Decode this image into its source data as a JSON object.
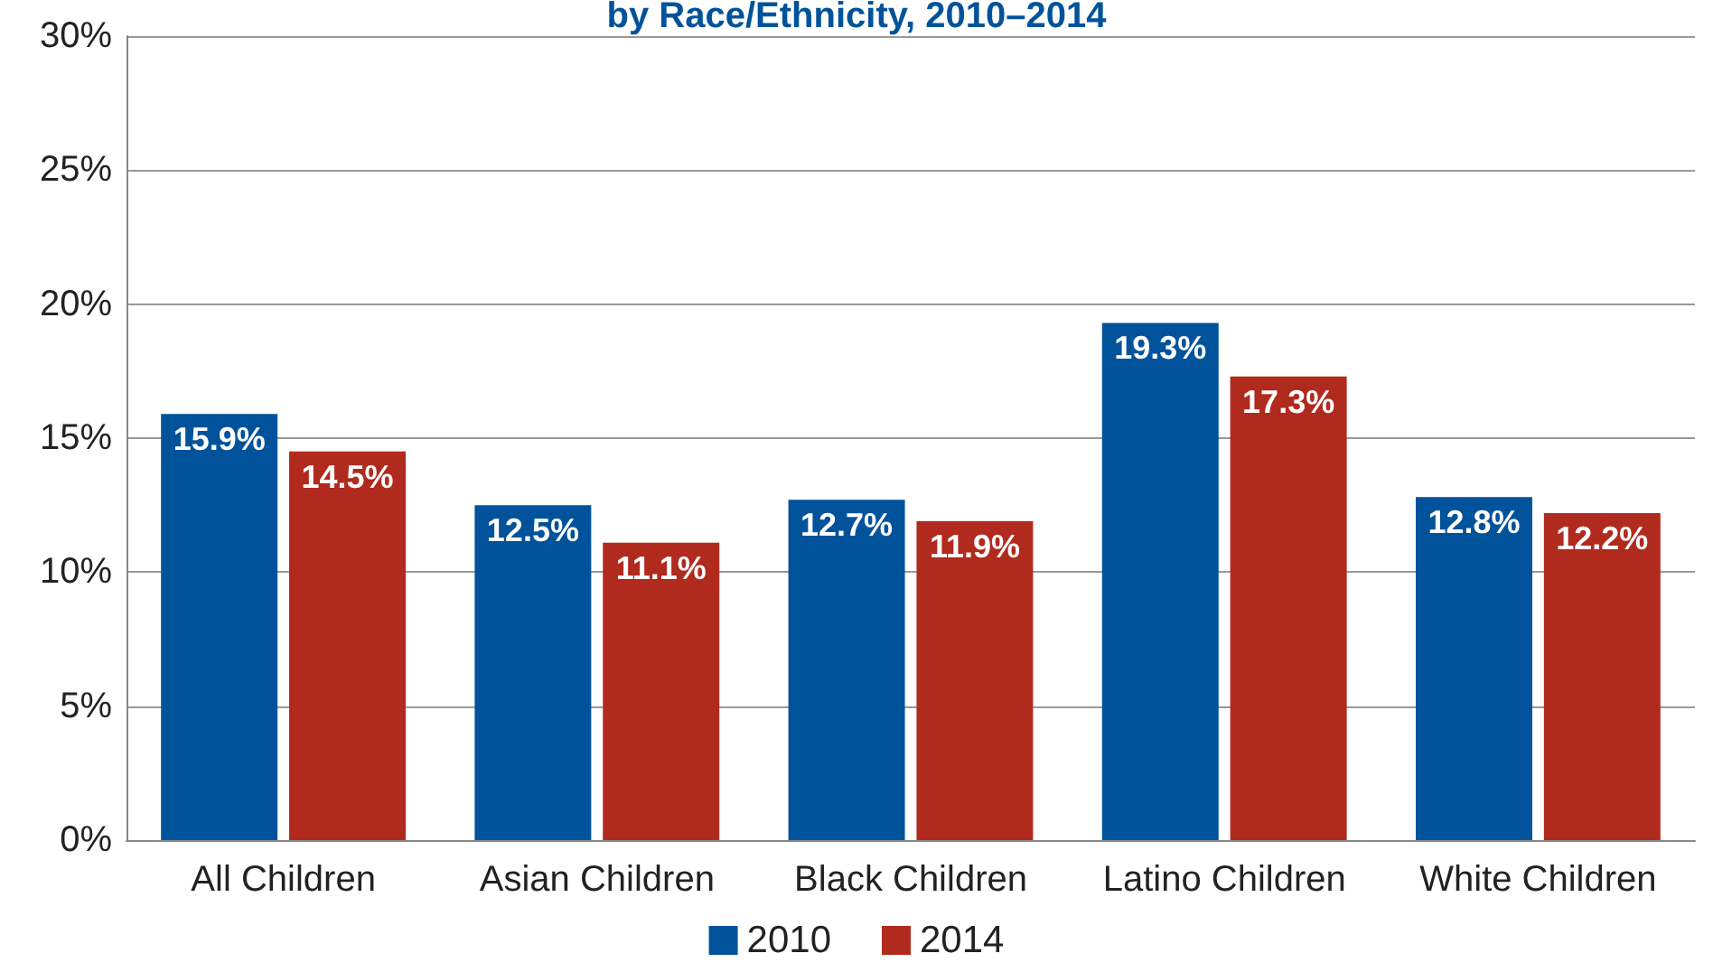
{
  "chart_data": {
    "type": "bar",
    "title": "by Race/Ethnicity, 2010–2014",
    "categories": [
      "All Children",
      "Asian Children",
      "Black Children",
      "Latino Children",
      "White Children"
    ],
    "series": [
      {
        "name": "2010",
        "color": "#00539b",
        "values": [
          15.9,
          12.5,
          12.7,
          19.3,
          12.8
        ],
        "value_labels": [
          "15.9%",
          "12.5%",
          "12.7%",
          "19.3%",
          "12.8%"
        ]
      },
      {
        "name": "2014",
        "color": "#b12a1e",
        "values": [
          14.5,
          11.1,
          11.9,
          17.3,
          12.2
        ],
        "value_labels": [
          "14.5%",
          "11.1%",
          "11.9%",
          "17.3%",
          "12.2%"
        ]
      }
    ],
    "ylim": [
      0,
      30
    ],
    "yticks": [
      {
        "value": 0,
        "label": "0%"
      },
      {
        "value": 5,
        "label": "5%"
      },
      {
        "value": 10,
        "label": "10%"
      },
      {
        "value": 15,
        "label": "15%"
      },
      {
        "value": 20,
        "label": "20%"
      },
      {
        "value": 25,
        "label": "25%"
      },
      {
        "value": 30,
        "label": "30%"
      }
    ],
    "grid": "y",
    "legend": "bottom"
  }
}
